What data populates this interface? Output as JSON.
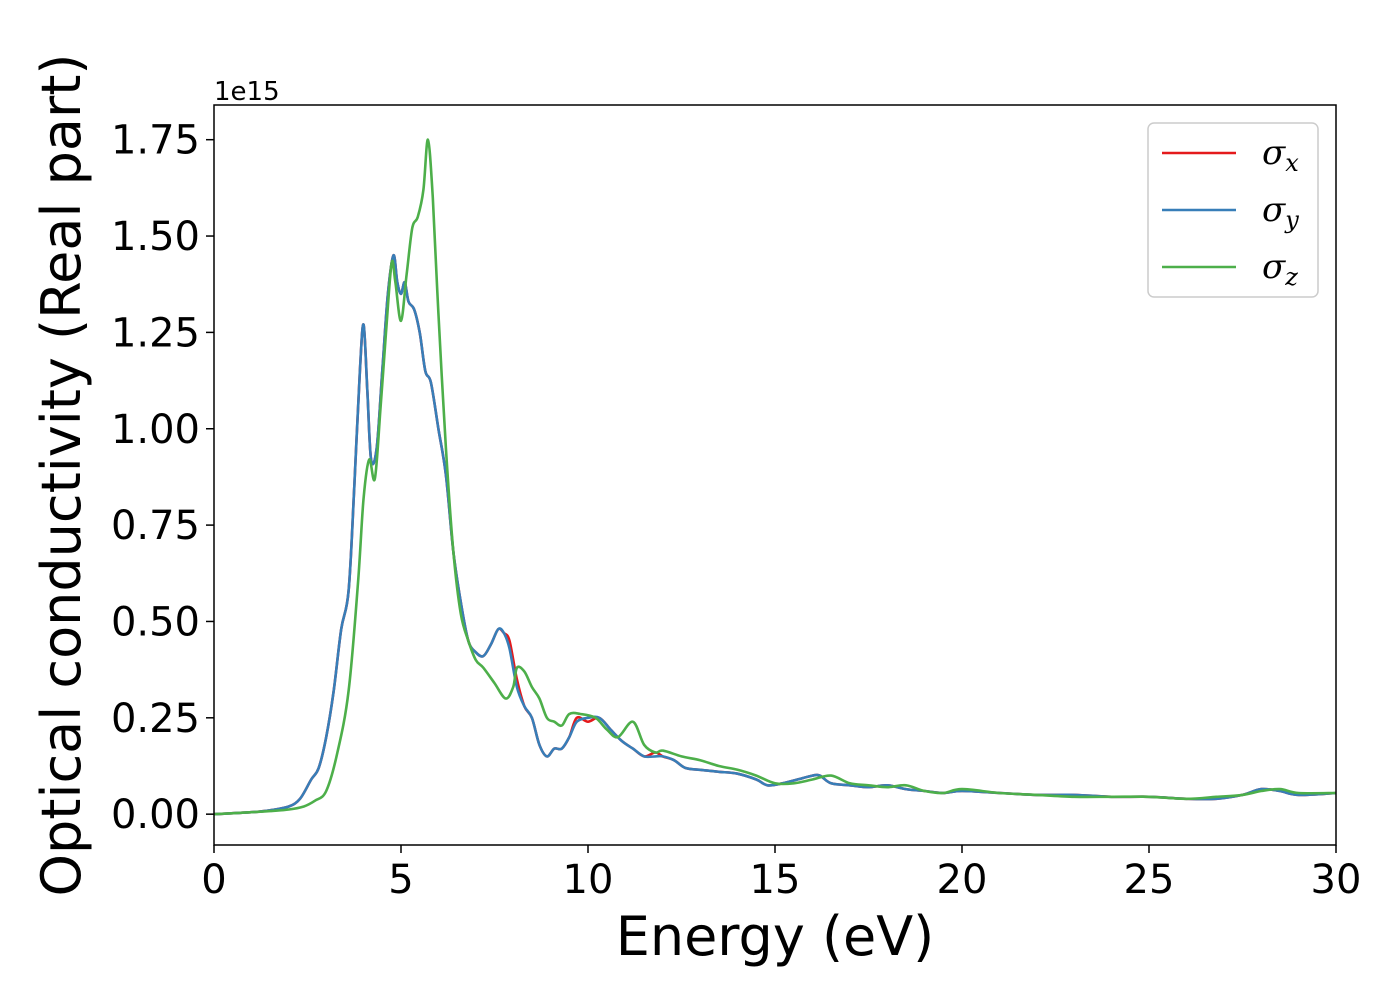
{
  "chart_data": {
    "type": "line",
    "xlabel": "Energy (eV)",
    "ylabel": "Optical conductivity (Real part)",
    "y_offset_text": "1e15",
    "xlim": [
      0,
      30
    ],
    "ylim": [
      -0.08,
      1.84
    ],
    "x_ticks": [
      0,
      5,
      10,
      15,
      20,
      25,
      30
    ],
    "x_tick_labels": [
      "0",
      "5",
      "10",
      "15",
      "20",
      "25",
      "30"
    ],
    "y_ticks": [
      0,
      0.25,
      0.5,
      0.75,
      1.0,
      1.25,
      1.5,
      1.75
    ],
    "y_tick_labels": [
      "0.00",
      "0.25",
      "0.50",
      "0.75",
      "1.00",
      "1.25",
      "1.50",
      "1.75"
    ],
    "grid": false,
    "legend_position": "top-right",
    "series": [
      {
        "name": "σx",
        "symbol": "σ",
        "subscript": "x",
        "color": "#e41a1c",
        "x": [
          0,
          1,
          1.5,
          2,
          2.3,
          2.6,
          2.8,
          3.0,
          3.2,
          3.4,
          3.6,
          3.75,
          3.9,
          4.0,
          4.1,
          4.2,
          4.35,
          4.5,
          4.65,
          4.8,
          4.9,
          5.0,
          5.1,
          5.2,
          5.35,
          5.5,
          5.65,
          5.8,
          6.0,
          6.2,
          6.4,
          6.6,
          6.8,
          7.0,
          7.2,
          7.4,
          7.6,
          7.75,
          7.9,
          8.1,
          8.3,
          8.5,
          8.7,
          8.9,
          9.1,
          9.3,
          9.5,
          9.7,
          10.0,
          10.3,
          10.6,
          10.9,
          11.2,
          11.5,
          11.8,
          12.0,
          12.3,
          12.6,
          13.0,
          13.5,
          14.0,
          14.5,
          14.8,
          15.2,
          15.6,
          16.0,
          16.2,
          16.5,
          17.0,
          17.5,
          18.0,
          18.5,
          19.0,
          19.5,
          20.0,
          21.0,
          22.0,
          23.0,
          24.0,
          25.0,
          26.0,
          26.8,
          27.5,
          28.0,
          28.5,
          29.0,
          30.0
        ],
        "values": [
          0,
          0.005,
          0.01,
          0.02,
          0.04,
          0.09,
          0.12,
          0.2,
          0.32,
          0.48,
          0.58,
          0.85,
          1.15,
          1.27,
          1.1,
          0.92,
          0.95,
          1.15,
          1.35,
          1.45,
          1.38,
          1.35,
          1.38,
          1.33,
          1.31,
          1.25,
          1.15,
          1.12,
          1.0,
          0.88,
          0.68,
          0.55,
          0.45,
          0.42,
          0.41,
          0.44,
          0.48,
          0.47,
          0.45,
          0.35,
          0.28,
          0.25,
          0.18,
          0.15,
          0.17,
          0.17,
          0.2,
          0.25,
          0.24,
          0.25,
          0.22,
          0.19,
          0.17,
          0.15,
          0.16,
          0.15,
          0.14,
          0.12,
          0.115,
          0.11,
          0.105,
          0.09,
          0.075,
          0.08,
          0.09,
          0.1,
          0.1,
          0.08,
          0.075,
          0.07,
          0.075,
          0.065,
          0.06,
          0.055,
          0.06,
          0.055,
          0.05,
          0.05,
          0.045,
          0.045,
          0.04,
          0.04,
          0.05,
          0.065,
          0.06,
          0.05,
          0.055
        ]
      },
      {
        "name": "σy",
        "symbol": "σ",
        "subscript": "y",
        "color": "#377eb8",
        "x": [
          0,
          1,
          1.5,
          2,
          2.3,
          2.6,
          2.8,
          3.0,
          3.2,
          3.4,
          3.6,
          3.75,
          3.9,
          4.0,
          4.1,
          4.2,
          4.35,
          4.5,
          4.65,
          4.8,
          4.9,
          5.0,
          5.1,
          5.2,
          5.35,
          5.5,
          5.65,
          5.8,
          6.0,
          6.2,
          6.4,
          6.6,
          6.8,
          7.0,
          7.2,
          7.4,
          7.6,
          7.75,
          7.9,
          8.1,
          8.3,
          8.5,
          8.7,
          8.9,
          9.1,
          9.3,
          9.5,
          9.7,
          10.0,
          10.3,
          10.6,
          10.9,
          11.2,
          11.5,
          11.8,
          12.0,
          12.3,
          12.6,
          13.0,
          13.5,
          14.0,
          14.5,
          14.8,
          15.2,
          15.6,
          16.0,
          16.2,
          16.5,
          17.0,
          17.5,
          18.0,
          18.5,
          19.0,
          19.5,
          20.0,
          21.0,
          22.0,
          23.0,
          24.0,
          25.0,
          26.0,
          26.8,
          27.5,
          28.0,
          28.5,
          29.0,
          30.0
        ],
        "values": [
          0,
          0.005,
          0.01,
          0.02,
          0.04,
          0.09,
          0.12,
          0.2,
          0.32,
          0.48,
          0.58,
          0.85,
          1.15,
          1.27,
          1.1,
          0.92,
          0.95,
          1.15,
          1.35,
          1.45,
          1.38,
          1.35,
          1.38,
          1.33,
          1.31,
          1.25,
          1.15,
          1.12,
          1.0,
          0.88,
          0.68,
          0.55,
          0.45,
          0.42,
          0.41,
          0.44,
          0.48,
          0.47,
          0.43,
          0.33,
          0.28,
          0.25,
          0.18,
          0.15,
          0.17,
          0.17,
          0.2,
          0.24,
          0.25,
          0.25,
          0.22,
          0.19,
          0.17,
          0.15,
          0.15,
          0.15,
          0.14,
          0.12,
          0.115,
          0.11,
          0.105,
          0.09,
          0.075,
          0.08,
          0.09,
          0.1,
          0.1,
          0.08,
          0.075,
          0.07,
          0.075,
          0.065,
          0.06,
          0.055,
          0.06,
          0.055,
          0.05,
          0.05,
          0.045,
          0.045,
          0.04,
          0.04,
          0.05,
          0.065,
          0.06,
          0.05,
          0.055
        ]
      },
      {
        "name": "σz",
        "symbol": "σ",
        "subscript": "z",
        "color": "#4daf4a",
        "x": [
          0,
          1,
          1.5,
          2,
          2.4,
          2.7,
          3.0,
          3.3,
          3.6,
          3.85,
          4.0,
          4.15,
          4.3,
          4.45,
          4.6,
          4.75,
          4.85,
          5.0,
          5.15,
          5.3,
          5.45,
          5.6,
          5.72,
          5.85,
          6.0,
          6.2,
          6.4,
          6.6,
          6.8,
          7.0,
          7.2,
          7.5,
          7.8,
          8.0,
          8.1,
          8.3,
          8.5,
          8.7,
          8.9,
          9.1,
          9.3,
          9.5,
          9.8,
          10.2,
          10.5,
          10.8,
          11.2,
          11.5,
          11.8,
          12.0,
          12.5,
          13.0,
          13.5,
          14.0,
          14.5,
          15.0,
          15.5,
          16.0,
          16.5,
          17.0,
          17.5,
          18.0,
          18.5,
          19.0,
          19.5,
          20.0,
          21.0,
          22.0,
          23.0,
          24.0,
          25.0,
          26.0,
          26.8,
          27.5,
          28.0,
          28.5,
          29.0,
          30.0
        ],
        "values": [
          0,
          0.005,
          0.008,
          0.012,
          0.02,
          0.035,
          0.06,
          0.16,
          0.32,
          0.6,
          0.82,
          0.92,
          0.87,
          1.05,
          1.25,
          1.43,
          1.38,
          1.28,
          1.4,
          1.52,
          1.55,
          1.62,
          1.75,
          1.6,
          1.3,
          0.95,
          0.68,
          0.52,
          0.45,
          0.4,
          0.38,
          0.34,
          0.3,
          0.33,
          0.38,
          0.37,
          0.33,
          0.3,
          0.25,
          0.24,
          0.23,
          0.26,
          0.26,
          0.25,
          0.22,
          0.2,
          0.24,
          0.18,
          0.16,
          0.165,
          0.15,
          0.14,
          0.125,
          0.115,
          0.1,
          0.08,
          0.08,
          0.09,
          0.1,
          0.08,
          0.075,
          0.07,
          0.075,
          0.06,
          0.055,
          0.065,
          0.055,
          0.05,
          0.045,
          0.045,
          0.045,
          0.04,
          0.045,
          0.05,
          0.06,
          0.065,
          0.055,
          0.055
        ]
      }
    ]
  }
}
